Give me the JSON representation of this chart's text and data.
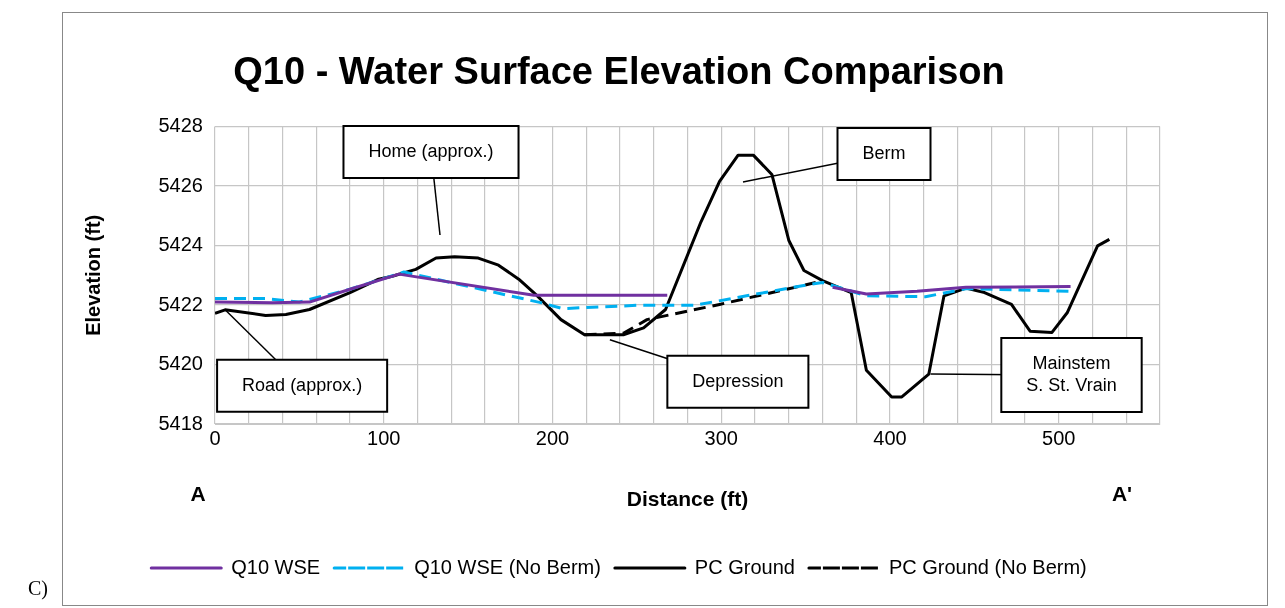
{
  "chart_data": {
    "type": "line",
    "title": "Q10 - Water Surface Elevation Comparison",
    "xlabel": "Distance (ft)",
    "ylabel": "Elevation (ft)",
    "xlim": [
      0,
      560
    ],
    "xticks": [
      0,
      {
        "value": 20,
        "label": null
      },
      {
        "value": 40,
        "label": null
      },
      {
        "value": 60,
        "label": null
      },
      {
        "value": 80,
        "label": null
      },
      100,
      {
        "value": 120,
        "label": null
      },
      {
        "value": 140,
        "label": null
      },
      {
        "value": 160,
        "label": null
      },
      {
        "value": 180,
        "label": null
      },
      200,
      {
        "value": 220,
        "label": null
      },
      {
        "value": 240,
        "label": null
      },
      {
        "value": 260,
        "label": null
      },
      {
        "value": 280,
        "label": null
      },
      300,
      {
        "value": 320,
        "label": null
      },
      {
        "value": 340,
        "label": null
      },
      {
        "value": 360,
        "label": null
      },
      {
        "value": 380,
        "label": null
      },
      400,
      {
        "value": 420,
        "label": null
      },
      {
        "value": 440,
        "label": null
      },
      {
        "value": 460,
        "label": null
      },
      {
        "value": 480,
        "label": null
      },
      500,
      {
        "value": 520,
        "label": null
      },
      {
        "value": 540,
        "label": null
      },
      {
        "value": 560,
        "label": null
      }
    ],
    "ylim": [
      5418,
      5428
    ],
    "yticks": [
      5418,
      5420,
      5422,
      5424,
      5426,
      5428
    ],
    "grid": true,
    "legend": "bottom",
    "marker": "none",
    "series": [
      {
        "name": "Q10 WSE",
        "color": "#7030a0",
        "line_style": "solid",
        "x": [
          0,
          34,
          56,
          80,
          109,
          189,
          268,
          300,
          366,
          386,
          416,
          445,
          507
        ],
        "values": [
          5422.1,
          5422.08,
          5422.1,
          5422.53,
          5423.04,
          5422.33,
          5422.33,
          null,
          5422.6,
          5422.37,
          5422.46,
          5422.6,
          5422.62
        ]
      },
      {
        "name": "Q10 WSE (No Berm)",
        "color": "#00b0f0",
        "line_style": "dashed",
        "x": [
          0,
          30,
          50,
          80,
          112,
          193,
          206,
          250,
          284,
          315,
          348,
          360,
          386,
          421,
          445,
          507
        ],
        "values": [
          5422.22,
          5422.22,
          5422.1,
          5422.53,
          5423.11,
          5422.08,
          5421.88,
          5421.99,
          5421.99,
          5422.31,
          5422.65,
          5422.76,
          5422.31,
          5422.28,
          5422.55,
          5422.46
        ]
      },
      {
        "name": "PC Ground",
        "color": "#000000",
        "line_style": "solid",
        "x": [
          0,
          6,
          30,
          42,
          56,
          80,
          97,
          105,
          119,
          131,
          142,
          156,
          168,
          180,
          191,
          205,
          219,
          242,
          254,
          267,
          288,
          299,
          310,
          319,
          330,
          340,
          349,
          360,
          377,
          386,
          401,
          407,
          423,
          432,
          445,
          456,
          472,
          483,
          496,
          505,
          523,
          530
        ],
        "values": [
          5421.72,
          5421.84,
          5421.65,
          5421.68,
          5421.85,
          5422.42,
          5422.87,
          5422.97,
          5423.2,
          5423.58,
          5423.62,
          5423.58,
          5423.34,
          5422.87,
          5422.31,
          5421.51,
          5421.0,
          5421.0,
          5421.23,
          5421.85,
          5424.8,
          5426.16,
          5427.04,
          5427.04,
          5426.39,
          5424.18,
          5423.16,
          5422.82,
          5422.42,
          5419.81,
          5418.91,
          5418.91,
          5419.68,
          5422.31,
          5422.57,
          5422.42,
          5422.02,
          5421.12,
          5421.08,
          5421.74,
          5423.99,
          5424.21
        ]
      },
      {
        "name": "PC Ground (No Berm)",
        "color": "#000000",
        "line_style": "dashed",
        "x": [
          219,
          242,
          256,
          299,
          348,
          356
        ],
        "values": [
          5421.0,
          5421.05,
          5421.51,
          5422.02,
          5422.65,
          5422.76
        ]
      }
    ],
    "annotations": [
      {
        "text": "Road (approx.)",
        "x": 6,
        "y": 5421.84
      },
      "Home (approx.)",
      "Berm",
      {
        "text": "Depression",
        "x": 234,
        "y": 5420.83
      },
      {
        "text": "Mainstem\nS. St. Vrain",
        "x": 424,
        "y": 5419.68
      },
      "A",
      "A'",
      "C)"
    ]
  }
}
